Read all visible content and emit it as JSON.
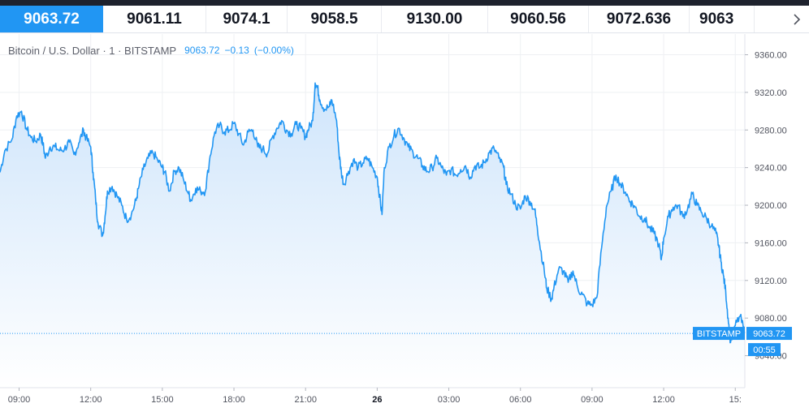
{
  "ticker": {
    "items": [
      "9063.72",
      "9061.11",
      "9074.1",
      "9058.5",
      "9130.00",
      "9060.56",
      "9072.636",
      "9063"
    ],
    "next_icon": "chevron-right-icon"
  },
  "legend": {
    "title": "Bitcoin / U.S. Dollar · 1 · BITSTAMP",
    "last": "9063.72",
    "change": "−0.13",
    "change_pct": "(−0.00%)"
  },
  "price_tag": {
    "exchange": "BITSTAMP",
    "price": "9063.72",
    "countdown": "00:55"
  },
  "colors": {
    "line": "#2196f3",
    "fill_top": "#cfe5fb",
    "fill_bottom": "#ffffff",
    "grid": "#eef0f3",
    "topbar": "#1e222d"
  },
  "chart_data": {
    "type": "area",
    "title": "Bitcoin / U.S. Dollar · 1 · BITSTAMP",
    "xlabel": "",
    "ylabel": "",
    "x_ticks": [
      "09:00",
      "12:00",
      "15:00",
      "18:00",
      "21:00",
      "26",
      "03:00",
      "06:00",
      "09:00",
      "12:00",
      "15:"
    ],
    "x_tick_hours": [
      0,
      3,
      6,
      9,
      12,
      15,
      18,
      21,
      24,
      27,
      30
    ],
    "y_ticks": [
      "9360.00",
      "9320.00",
      "9280.00",
      "9240.00",
      "9200.00",
      "9160.00",
      "9120.00",
      "9080.00",
      "9040.00"
    ],
    "ylim": [
      9006,
      9382
    ],
    "xlim_hours": [
      -0.8,
      30.4
    ],
    "grid": true,
    "last_price": 9063.72,
    "series": [
      {
        "points": [
          [
            -0.8,
            9235
          ],
          [
            -0.6,
            9258
          ],
          [
            -0.3,
            9270
          ],
          [
            -0.1,
            9295
          ],
          [
            0.1,
            9300
          ],
          [
            0.3,
            9282
          ],
          [
            0.5,
            9272
          ],
          [
            0.7,
            9268
          ],
          [
            0.9,
            9275
          ],
          [
            1.0,
            9265
          ],
          [
            1.1,
            9250
          ],
          [
            1.3,
            9262
          ],
          [
            1.5,
            9262
          ],
          [
            1.7,
            9258
          ],
          [
            1.9,
            9260
          ],
          [
            2.1,
            9267
          ],
          [
            2.3,
            9254
          ],
          [
            2.5,
            9266
          ],
          [
            2.7,
            9280
          ],
          [
            2.8,
            9272
          ],
          [
            3.0,
            9262
          ],
          [
            3.1,
            9235
          ],
          [
            3.2,
            9208
          ],
          [
            3.3,
            9182
          ],
          [
            3.5,
            9168
          ],
          [
            3.6,
            9188
          ],
          [
            3.7,
            9215
          ],
          [
            3.9,
            9220
          ],
          [
            4.1,
            9210
          ],
          [
            4.3,
            9200
          ],
          [
            4.5,
            9185
          ],
          [
            4.7,
            9190
          ],
          [
            4.9,
            9205
          ],
          [
            5.0,
            9218
          ],
          [
            5.2,
            9238
          ],
          [
            5.4,
            9250
          ],
          [
            5.6,
            9256
          ],
          [
            5.8,
            9248
          ],
          [
            6.0,
            9240
          ],
          [
            6.1,
            9235
          ],
          [
            6.3,
            9215
          ],
          [
            6.5,
            9236
          ],
          [
            6.7,
            9240
          ],
          [
            6.9,
            9226
          ],
          [
            7.1,
            9212
          ],
          [
            7.2,
            9205
          ],
          [
            7.4,
            9218
          ],
          [
            7.6,
            9215
          ],
          [
            7.8,
            9215
          ],
          [
            8.0,
            9252
          ],
          [
            8.2,
            9278
          ],
          [
            8.4,
            9285
          ],
          [
            8.6,
            9278
          ],
          [
            8.8,
            9280
          ],
          [
            9.0,
            9287
          ],
          [
            9.2,
            9276
          ],
          [
            9.4,
            9264
          ],
          [
            9.6,
            9278
          ],
          [
            9.8,
            9280
          ],
          [
            10.0,
            9262
          ],
          [
            10.2,
            9260
          ],
          [
            10.4,
            9255
          ],
          [
            10.6,
            9272
          ],
          [
            10.8,
            9282
          ],
          [
            11.0,
            9290
          ],
          [
            11.2,
            9280
          ],
          [
            11.4,
            9276
          ],
          [
            11.6,
            9286
          ],
          [
            11.8,
            9282
          ],
          [
            12.0,
            9273
          ],
          [
            12.1,
            9280
          ],
          [
            12.3,
            9290
          ],
          [
            12.4,
            9330
          ],
          [
            12.5,
            9325
          ],
          [
            12.6,
            9312
          ],
          [
            12.8,
            9302
          ],
          [
            13.0,
            9305
          ],
          [
            13.1,
            9312
          ],
          [
            13.3,
            9290
          ],
          [
            13.4,
            9255
          ],
          [
            13.5,
            9235
          ],
          [
            13.6,
            9222
          ],
          [
            13.8,
            9236
          ],
          [
            14.0,
            9248
          ],
          [
            14.2,
            9240
          ],
          [
            14.4,
            9245
          ],
          [
            14.6,
            9250
          ],
          [
            14.8,
            9240
          ],
          [
            15.0,
            9230
          ],
          [
            15.1,
            9210
          ],
          [
            15.2,
            9190
          ],
          [
            15.3,
            9240
          ],
          [
            15.5,
            9262
          ],
          [
            15.7,
            9274
          ],
          [
            15.9,
            9282
          ],
          [
            16.1,
            9272
          ],
          [
            16.3,
            9262
          ],
          [
            16.5,
            9256
          ],
          [
            16.7,
            9250
          ],
          [
            16.9,
            9242
          ],
          [
            17.1,
            9236
          ],
          [
            17.3,
            9240
          ],
          [
            17.5,
            9250
          ],
          [
            17.7,
            9240
          ],
          [
            17.9,
            9232
          ],
          [
            18.1,
            9238
          ],
          [
            18.3,
            9232
          ],
          [
            18.5,
            9238
          ],
          [
            18.7,
            9242
          ],
          [
            18.9,
            9230
          ],
          [
            19.1,
            9242
          ],
          [
            19.3,
            9240
          ],
          [
            19.5,
            9246
          ],
          [
            19.7,
            9256
          ],
          [
            19.9,
            9260
          ],
          [
            20.1,
            9250
          ],
          [
            20.3,
            9240
          ],
          [
            20.4,
            9222
          ],
          [
            20.6,
            9212
          ],
          [
            20.8,
            9200
          ],
          [
            21.0,
            9196
          ],
          [
            21.2,
            9210
          ],
          [
            21.4,
            9204
          ],
          [
            21.6,
            9195
          ],
          [
            21.7,
            9178
          ],
          [
            21.8,
            9160
          ],
          [
            22.0,
            9130
          ],
          [
            22.1,
            9112
          ],
          [
            22.3,
            9100
          ],
          [
            22.4,
            9112
          ],
          [
            22.6,
            9132
          ],
          [
            22.8,
            9130
          ],
          [
            23.0,
            9118
          ],
          [
            23.2,
            9130
          ],
          [
            23.4,
            9112
          ],
          [
            23.6,
            9105
          ],
          [
            23.8,
            9095
          ],
          [
            24.0,
            9094
          ],
          [
            24.2,
            9102
          ],
          [
            24.4,
            9155
          ],
          [
            24.6,
            9198
          ],
          [
            24.8,
            9215
          ],
          [
            25.0,
            9232
          ],
          [
            25.2,
            9222
          ],
          [
            25.4,
            9214
          ],
          [
            25.6,
            9204
          ],
          [
            25.8,
            9198
          ],
          [
            26.0,
            9188
          ],
          [
            26.2,
            9186
          ],
          [
            26.4,
            9176
          ],
          [
            26.6,
            9170
          ],
          [
            26.8,
            9158
          ],
          [
            26.9,
            9142
          ],
          [
            27.0,
            9165
          ],
          [
            27.2,
            9188
          ],
          [
            27.4,
            9198
          ],
          [
            27.6,
            9200
          ],
          [
            27.8,
            9188
          ],
          [
            28.0,
            9196
          ],
          [
            28.2,
            9212
          ],
          [
            28.4,
            9200
          ],
          [
            28.6,
            9192
          ],
          [
            28.8,
            9186
          ],
          [
            29.0,
            9178
          ],
          [
            29.2,
            9170
          ],
          [
            29.3,
            9158
          ],
          [
            29.4,
            9140
          ],
          [
            29.5,
            9126
          ],
          [
            29.6,
            9108
          ],
          [
            29.7,
            9080
          ],
          [
            29.8,
            9054
          ],
          [
            30.0,
            9072
          ],
          [
            30.2,
            9082
          ],
          [
            30.4,
            9064
          ]
        ]
      }
    ]
  }
}
